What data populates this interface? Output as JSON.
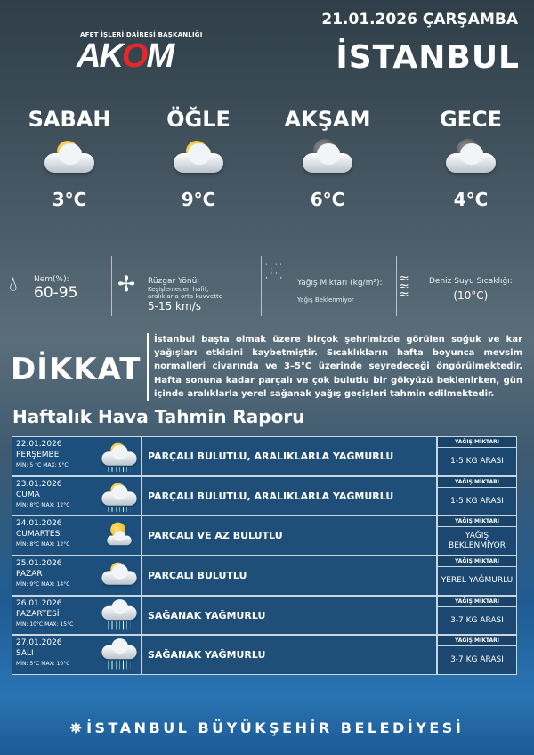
{
  "header": {
    "date": "21.01.2026 ÇARŞAMBA",
    "city": "İSTANBUL",
    "logo_subtitle": "AFET İŞLERİ DAİRESİ BAŞKANLIĞI",
    "logo_text": "AKOM"
  },
  "periods": [
    {
      "name": "SABAH",
      "temp": "3°C",
      "icon": "partly-cloudy-sun"
    },
    {
      "name": "ÖĞLE",
      "temp": "9°C",
      "icon": "partly-cloudy-sun"
    },
    {
      "name": "AKŞAM",
      "temp": "6°C",
      "icon": "cloudy-moon"
    },
    {
      "name": "GECE",
      "temp": "4°C",
      "icon": "cloudy-moon"
    }
  ],
  "stats": {
    "humidity": {
      "label": "Nem(%):",
      "value": "60-95",
      "icon": "droplet-icon"
    },
    "wind": {
      "label": "Rüzgar Yönü:",
      "desc1": "Keşişlemeden hafif,",
      "desc2": "aralıklarla orta kuvvette",
      "value": "5-15 km/s",
      "icon": "pinwheel-icon"
    },
    "precip": {
      "label": "Yağış Miktarı (kg/m²):",
      "value": "Yağış Beklenmiyor",
      "icon": "rain-drops-icon"
    },
    "sea": {
      "label": "Deniz Suyu Sıcaklığı:",
      "value": "(10°C)",
      "icon": "waves-icon"
    }
  },
  "notice": {
    "title": "DİKKAT",
    "text": "İstanbul başta olmak üzere birçok şehrimizde görülen soğuk ve kar yağışları etkisini kaybetmiştir. Sıcaklıkların hafta boyunca mevsim normalleri civarında ve 3–5°C üzerinde seyredeceği öngörülmektedir. Hafta sonuna kadar parçalı ve çok bulutlu bir gökyüzü beklenirken, gün içinde aralıklarla yerel sağanak yağış geçişleri tahmin edilmektedir."
  },
  "weekly": {
    "title": "Haftalık Hava Tahmin Raporu",
    "precip_header": "YAĞIŞ MİKTARI",
    "days": [
      {
        "date": "22.01.2026",
        "day": "PERŞEMBE",
        "min": "MİN: 5 °C",
        "max": "MAX: 9°C",
        "desc": "PARÇALI BULUTLU, ARALIKLARLA YAĞMURLU",
        "precip": "1-5 KG ARASI",
        "icon": "sun-cloud-rain"
      },
      {
        "date": "23.01.2026",
        "day": "CUMA",
        "min": "MİN: 8°C",
        "max": "MAX: 12°C",
        "desc": "PARÇALI BULUTLU, ARALIKLARLA YAĞMURLU",
        "precip": "1-5 KG ARASI",
        "icon": "sun-cloud-rain"
      },
      {
        "date": "24.01.2026",
        "day": "CUMARTESİ",
        "min": "MİN: 8°C",
        "max": "MAX: 12°C",
        "desc": "PARÇALI VE AZ BULUTLU",
        "precip": "YAĞIŞ BEKLENMİYOR",
        "icon": "sun-small-clouds"
      },
      {
        "date": "25.01.2026",
        "day": "PAZAR",
        "min": "MİN: 9°C",
        "max": "MAX: 14°C",
        "desc": "PARÇALI BULUTLU",
        "precip": "YEREL YAĞMURLU",
        "icon": "sun-cloud"
      },
      {
        "date": "26.01.2026",
        "day": "PAZARTESİ",
        "min": "MİN: 10°C",
        "max": "MAX: 15°C",
        "desc": "SAĞANAK YAĞMURLU",
        "precip": "3-7 KG ARASI",
        "icon": "cloud-rain"
      },
      {
        "date": "27.01.2026",
        "day": "SALI",
        "min": "MİN: 5°C",
        "max": "MAX: 10°C",
        "desc": "SAĞANAK YAĞMURLU",
        "precip": "3-7 KG ARASI",
        "icon": "cloud-rain"
      }
    ]
  },
  "footer": {
    "text": "İSTANBUL BÜYÜKŞEHİR BELEDİYESİ"
  },
  "colors": {
    "logo_red": "#e5262a",
    "table_cell": "#1f4e78"
  }
}
